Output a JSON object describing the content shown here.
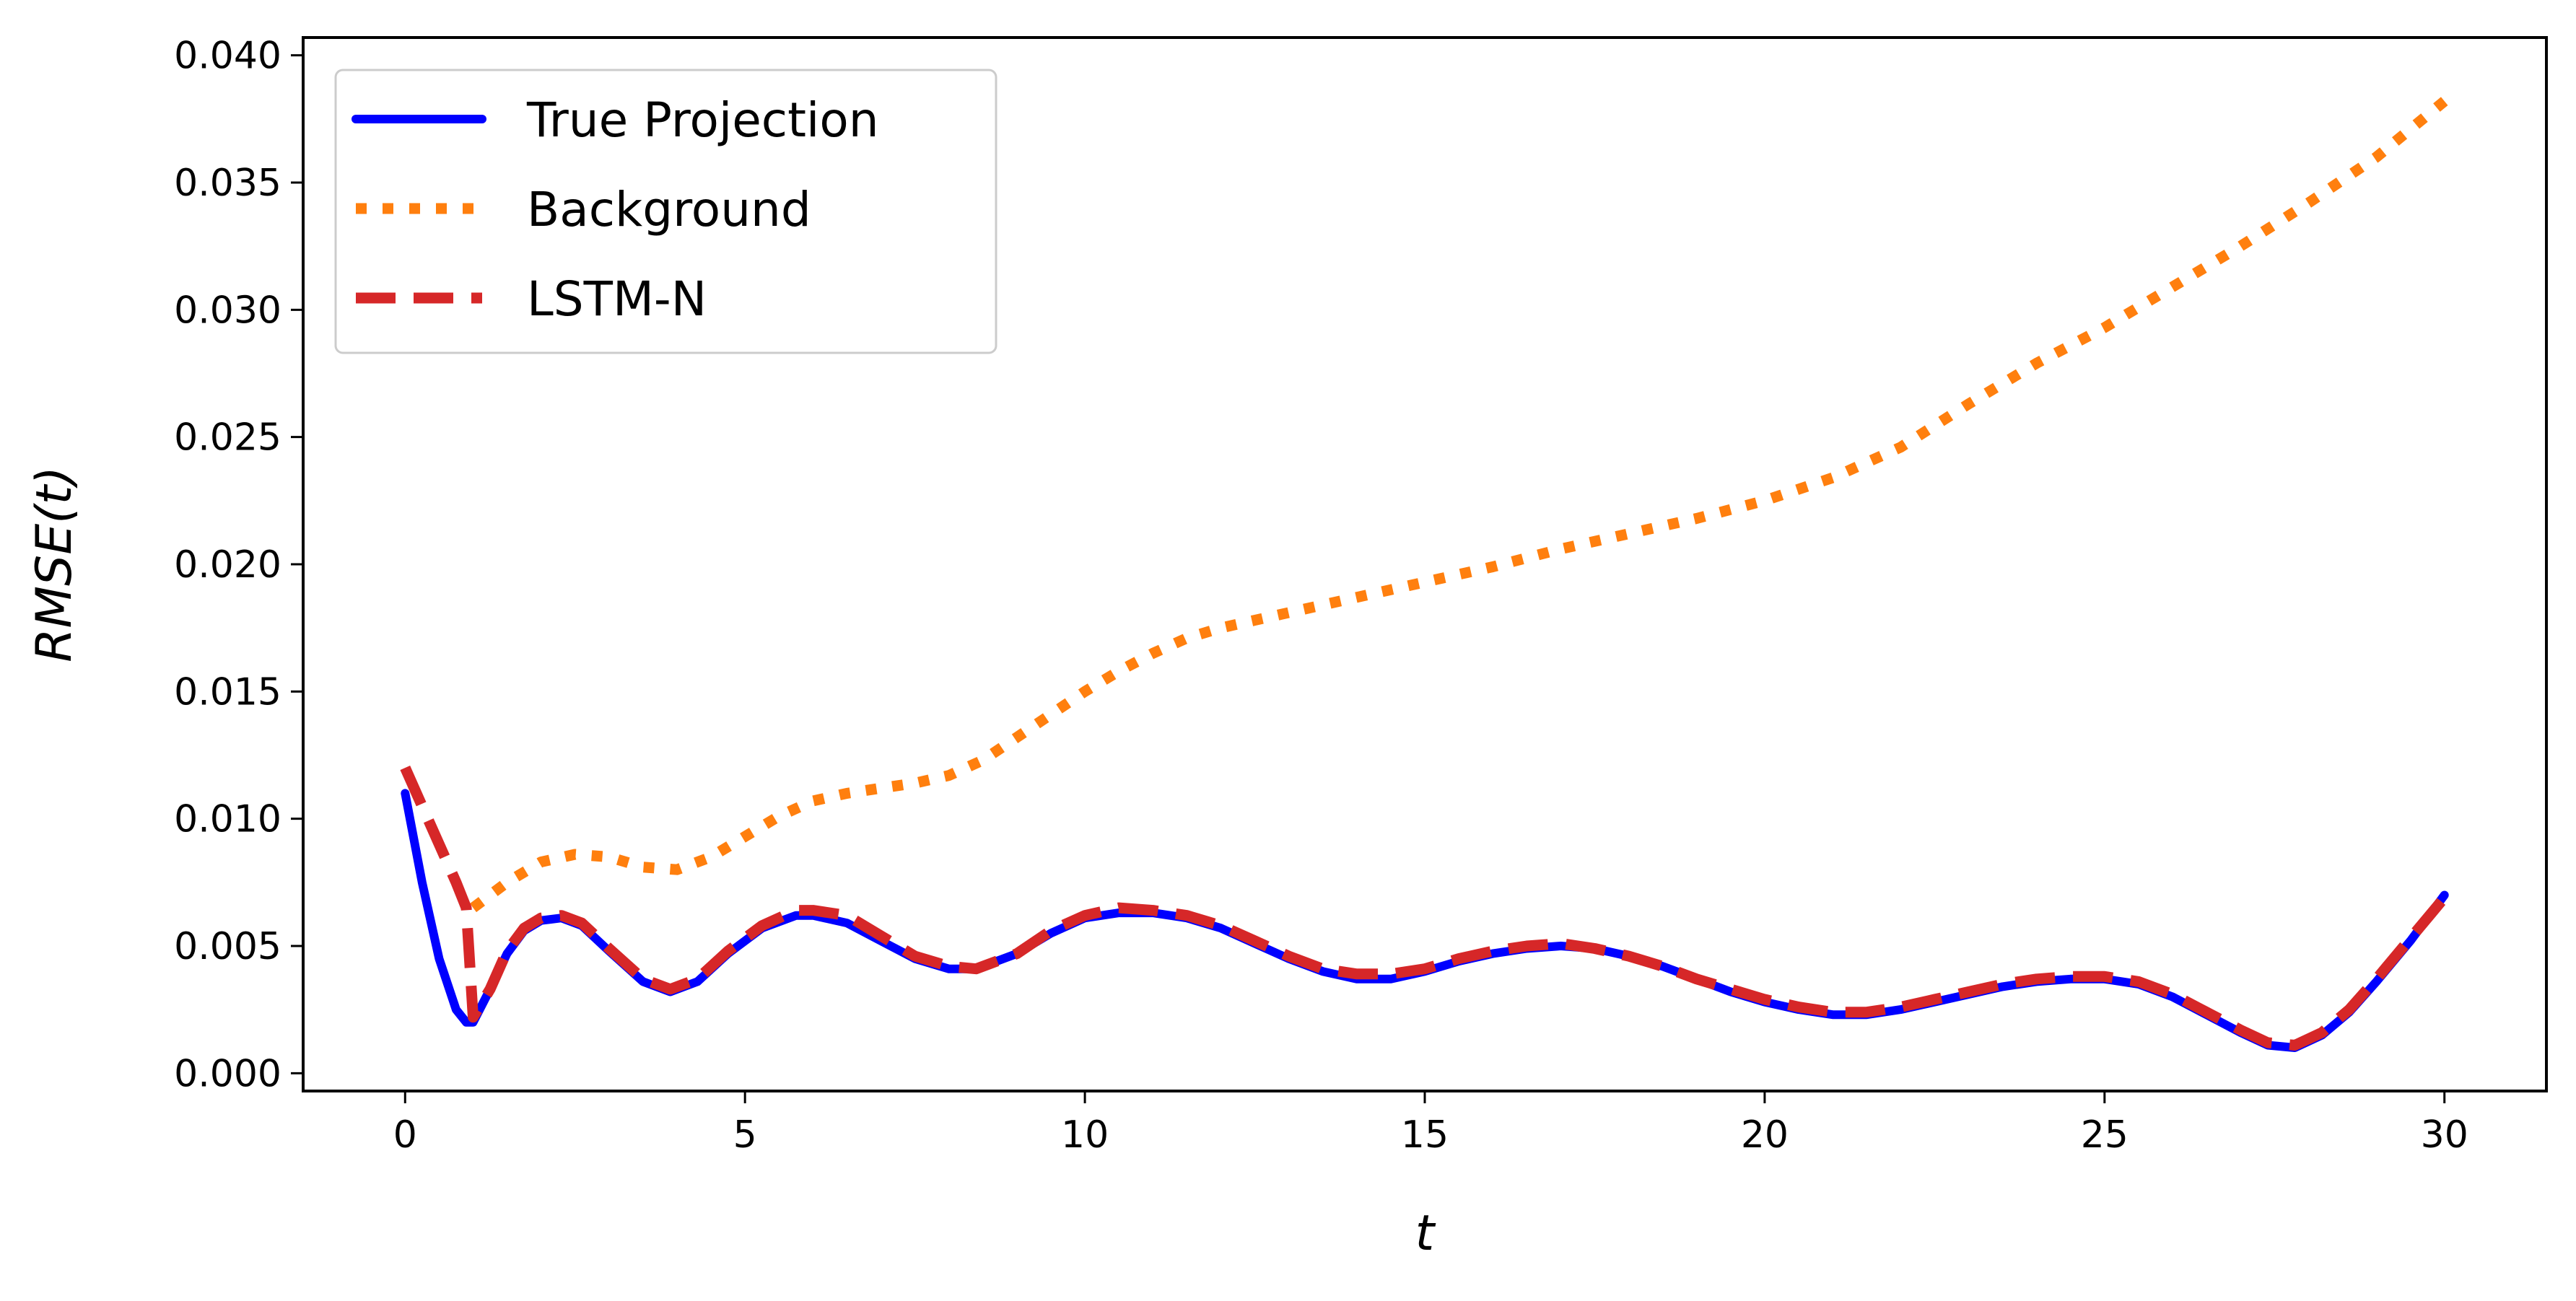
{
  "chart_data": {
    "type": "line",
    "xlabel": "t",
    "ylabel": "RMSE(t)",
    "xlim": [
      -1.5,
      31.5
    ],
    "ylim": [
      -0.0007,
      0.0407
    ],
    "xticks": [
      0,
      5,
      10,
      15,
      20,
      25,
      30
    ],
    "yticks": [
      0.0,
      0.005,
      0.01,
      0.015,
      0.02,
      0.025,
      0.03,
      0.035,
      0.04
    ],
    "ytick_labels": [
      "0.000",
      "0.005",
      "0.010",
      "0.015",
      "0.020",
      "0.025",
      "0.030",
      "0.035",
      "0.040"
    ],
    "grid": false,
    "legend_position": "top-left",
    "series": [
      {
        "name": "True Projection",
        "color": "#0000ff",
        "style": "solid",
        "x": [
          0,
          0.25,
          0.5,
          0.75,
          0.9,
          1.0,
          1.25,
          1.5,
          1.75,
          2.0,
          2.3,
          2.6,
          3.0,
          3.5,
          3.9,
          4.3,
          4.75,
          5.25,
          5.75,
          6.0,
          6.5,
          7.0,
          7.5,
          8.0,
          8.4,
          9.0,
          9.5,
          10.0,
          10.5,
          11.0,
          11.5,
          12.0,
          12.5,
          13.0,
          13.5,
          14.0,
          14.5,
          15.0,
          15.5,
          16.0,
          16.5,
          17.0,
          17.5,
          18.0,
          18.5,
          19.0,
          19.5,
          20.0,
          20.5,
          21.0,
          21.5,
          22.0,
          22.5,
          23.0,
          23.5,
          24.0,
          24.5,
          25.0,
          25.5,
          26.0,
          26.5,
          27.0,
          27.4,
          27.8,
          28.2,
          28.6,
          29.0,
          29.5,
          30.0
        ],
        "y": [
          0.011,
          0.0075,
          0.0045,
          0.0025,
          0.002,
          0.002,
          0.0033,
          0.0047,
          0.0056,
          0.006,
          0.0061,
          0.0058,
          0.0048,
          0.0036,
          0.0032,
          0.0036,
          0.0047,
          0.0057,
          0.0062,
          0.0062,
          0.0059,
          0.0052,
          0.0045,
          0.0041,
          0.0041,
          0.0047,
          0.0055,
          0.0061,
          0.0063,
          0.0063,
          0.0061,
          0.0057,
          0.0051,
          0.0045,
          0.004,
          0.0037,
          0.0037,
          0.004,
          0.0044,
          0.0047,
          0.0049,
          0.005,
          0.0049,
          0.0046,
          0.0042,
          0.0037,
          0.0032,
          0.0028,
          0.0025,
          0.0023,
          0.0023,
          0.0025,
          0.0028,
          0.0031,
          0.0034,
          0.0036,
          0.0037,
          0.0037,
          0.0035,
          0.003,
          0.0023,
          0.0016,
          0.0011,
          0.001,
          0.0015,
          0.0024,
          0.0036,
          0.0052,
          0.007
        ]
      },
      {
        "name": "Background",
        "color": "#ff7f0e",
        "style": "dotted",
        "x": [
          1.0,
          1.5,
          2.0,
          2.5,
          3.0,
          3.5,
          4.0,
          4.5,
          5.0,
          5.5,
          6.0,
          6.5,
          7.0,
          7.5,
          8.0,
          8.5,
          9.0,
          9.5,
          10.0,
          10.5,
          11.0,
          11.5,
          12.0,
          12.5,
          13.0,
          14.0,
          15.0,
          16.0,
          17.0,
          18.0,
          19.0,
          20.0,
          21.0,
          22.0,
          23.0,
          24.0,
          25.0,
          26.0,
          27.0,
          28.0,
          29.0,
          30.0
        ],
        "y": [
          0.0065,
          0.0075,
          0.0083,
          0.0086,
          0.0085,
          0.0081,
          0.008,
          0.0085,
          0.0093,
          0.0101,
          0.0107,
          0.011,
          0.0112,
          0.0114,
          0.0117,
          0.0123,
          0.0132,
          0.0141,
          0.015,
          0.0158,
          0.0165,
          0.0171,
          0.0175,
          0.0178,
          0.0181,
          0.0187,
          0.0193,
          0.0199,
          0.0206,
          0.0212,
          0.0218,
          0.0225,
          0.0234,
          0.0246,
          0.0263,
          0.0279,
          0.0293,
          0.0309,
          0.0325,
          0.0342,
          0.036,
          0.0382
        ]
      },
      {
        "name": "LSTM-N",
        "color": "#d62728",
        "style": "dashed",
        "x": [
          0,
          0.25,
          0.5,
          0.75,
          0.9,
          1.0,
          1.25,
          1.5,
          1.75,
          2.0,
          2.3,
          2.6,
          3.0,
          3.5,
          3.9,
          4.3,
          4.75,
          5.25,
          5.75,
          6.0,
          6.5,
          7.0,
          7.5,
          8.0,
          8.4,
          9.0,
          9.5,
          10.0,
          10.5,
          11.0,
          11.5,
          12.0,
          12.5,
          13.0,
          13.5,
          14.0,
          14.5,
          15.0,
          15.5,
          16.0,
          16.5,
          17.0,
          17.5,
          18.0,
          18.5,
          19.0,
          19.5,
          20.0,
          20.5,
          21.0,
          21.5,
          22.0,
          22.5,
          23.0,
          23.5,
          24.0,
          24.5,
          25.0,
          25.5,
          26.0,
          26.5,
          27.0,
          27.4,
          27.8,
          28.2,
          28.6,
          29.0,
          29.5,
          30.0
        ],
        "y": [
          0.012,
          0.0105,
          0.009,
          0.0075,
          0.0065,
          0.0022,
          0.0033,
          0.0048,
          0.0057,
          0.0061,
          0.0062,
          0.0059,
          0.0049,
          0.0037,
          0.0033,
          0.0037,
          0.0048,
          0.0058,
          0.0064,
          0.0064,
          0.0062,
          0.0054,
          0.0046,
          0.0042,
          0.0041,
          0.0047,
          0.0056,
          0.0062,
          0.0065,
          0.0064,
          0.0062,
          0.0058,
          0.0052,
          0.0046,
          0.0041,
          0.0039,
          0.0039,
          0.0041,
          0.0045,
          0.0048,
          0.005,
          0.0051,
          0.0049,
          0.0046,
          0.0042,
          0.0037,
          0.0033,
          0.0029,
          0.0026,
          0.0024,
          0.0024,
          0.0026,
          0.0029,
          0.0032,
          0.0035,
          0.0037,
          0.0038,
          0.0038,
          0.0036,
          0.0031,
          0.0024,
          0.0017,
          0.0012,
          0.0011,
          0.0016,
          0.0025,
          0.0037,
          0.0053,
          0.0069
        ]
      }
    ]
  }
}
